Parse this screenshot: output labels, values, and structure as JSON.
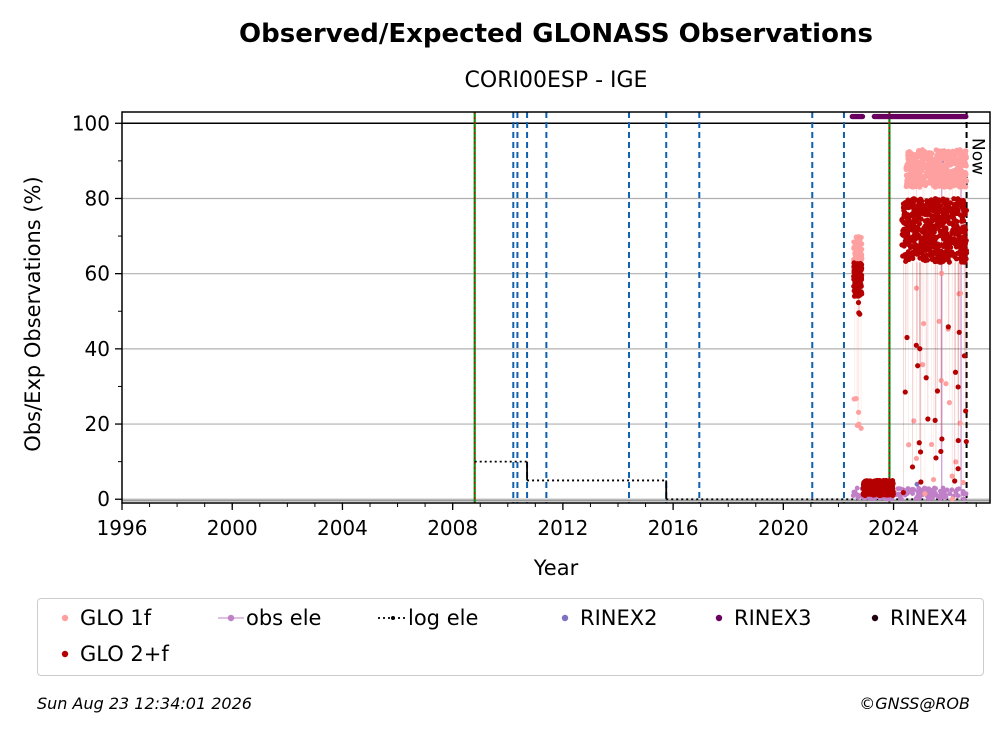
{
  "chart_data": {
    "type": "scatter",
    "title": "Observed/Expected GLONASS Observations",
    "subtitle": "CORI00ESP - IGE",
    "xlabel": "Year",
    "ylabel": "Obs/Exp Observations (%)",
    "xlim": [
      1996,
      2027.5
    ],
    "ylim": [
      -1,
      103
    ],
    "x_ticks": [
      1996,
      2000,
      2004,
      2008,
      2012,
      2016,
      2020,
      2024
    ],
    "x_tick_labels": [
      "1996",
      "2000",
      "2004",
      "2008",
      "2012",
      "2016",
      "2020",
      "2024"
    ],
    "y_ticks": [
      0,
      20,
      40,
      60,
      80,
      100
    ],
    "y_tick_labels": [
      "0",
      "20",
      "40",
      "60",
      "80",
      "100"
    ],
    "grid": "horizontal",
    "hline": 100,
    "blue_event_lines": [
      2010.2,
      2010.35,
      2010.7,
      2011.4,
      2014.4,
      2015.75,
      2016.95,
      2021.05,
      2022.2
    ],
    "green_event_lines": [
      2008.8,
      2023.85
    ],
    "now_line": {
      "x": 2026.65,
      "label": "Now"
    },
    "log_ele_steps": [
      {
        "x": [
          2008.8,
          2010.7
        ],
        "y": 10
      },
      {
        "x": [
          2010.7,
          2015.75
        ],
        "y": 5
      },
      {
        "x": [
          2015.75,
          2026.65
        ],
        "y": 0
      }
    ],
    "series": [
      {
        "name": "GLO 1f",
        "color": "#ffa0a0",
        "clusters": [
          {
            "x": [
              2022.55,
              2022.85
            ],
            "y_main": [
              60,
              70
            ],
            "outliers": [
              22,
              17
            ]
          },
          {
            "x": [
              2024.45,
              2026.65
            ],
            "y_main": [
              83,
              93
            ],
            "outliers": [
              0,
              4,
              10,
              20,
              30,
              45,
              52,
              60
            ]
          }
        ]
      },
      {
        "name": "GLO 2+f",
        "color": "#b40000",
        "clusters": [
          {
            "x": [
              2022.55,
              2022.85
            ],
            "y_main": [
              54,
              63
            ],
            "outliers": [
              48,
              50
            ]
          },
          {
            "x": [
              2022.9,
              2024.0
            ],
            "y_main": [
              1,
              5
            ],
            "outliers": []
          },
          {
            "x": [
              2024.3,
              2026.65
            ],
            "y_main": [
              63,
              80
            ],
            "outliers": [
              0,
              5,
              10,
              15,
              20,
              25,
              30,
              35,
              40
            ]
          }
        ]
      },
      {
        "name": "obs ele",
        "color": "#c080c8",
        "y_range": [
          0,
          3
        ],
        "x_range": [
          2022.5,
          2026.65
        ]
      },
      {
        "name": "log ele",
        "color": "#000000"
      },
      {
        "name": "RINEX2",
        "color": "#8070c0"
      },
      {
        "name": "RINEX3",
        "color": "#6a0060",
        "y": 101.8,
        "x_range": [
          2022.5,
          2026.65
        ]
      },
      {
        "name": "RINEX4",
        "color": "#200010"
      }
    ]
  },
  "legend": [
    {
      "label": "GLO 1f",
      "color": "#ffa0a0"
    },
    {
      "label": "obs ele",
      "color": "#c080c8"
    },
    {
      "label": "log ele",
      "color": "#000000"
    },
    {
      "label": "RINEX2",
      "color": "#8070c0"
    },
    {
      "label": "RINEX3",
      "color": "#6a0060"
    },
    {
      "label": "RINEX4",
      "color": "#200010"
    },
    {
      "label": "GLO 2+f",
      "color": "#b40000"
    }
  ],
  "footer": {
    "timestamp": "Sun Aug 23 12:34:01 2026",
    "credit": "©GNSS@ROB"
  }
}
